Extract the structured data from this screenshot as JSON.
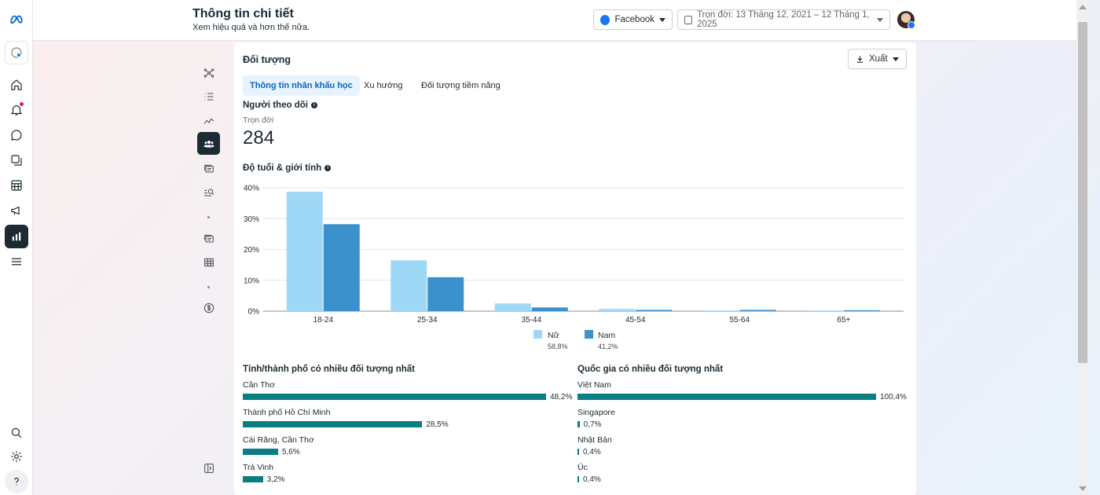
{
  "header": {
    "title": "Thông tin chi tiết",
    "subtitle": "Xem hiệu quả và hơn thế nữa.",
    "platform_label": "Facebook",
    "date_range": "Trọn đời: 13 Tháng 12, 2021 – 12 Tháng 1, 2025"
  },
  "card": {
    "title": "Đối tượng",
    "export_label": "Xuất",
    "tabs": [
      "Thông tin nhân khẩu học",
      "Xu hướng",
      "Đối tượng tiềm năng"
    ],
    "followers": {
      "title": "Người theo dõi",
      "period": "Trọn đời",
      "value": "284"
    },
    "age_gender_title": "Độ tuổi & giới tính",
    "legend": [
      {
        "label": "Nữ",
        "pct": "58,8%",
        "color": "#9fd8f7"
      },
      {
        "label": "Nam",
        "pct": "41,2%",
        "color": "#3a91cc"
      }
    ]
  },
  "chart_data": {
    "type": "bar",
    "categories": [
      "18-24",
      "25-34",
      "35-44",
      "45-54",
      "55-64",
      "65+"
    ],
    "series": [
      {
        "name": "Nữ",
        "values": [
          38.7,
          16.5,
          2.5,
          0.7,
          0.2,
          0.2
        ],
        "color": "#9fd8f7"
      },
      {
        "name": "Nam",
        "values": [
          28.2,
          11.0,
          1.2,
          0.4,
          0.4,
          0.3
        ],
        "color": "#3a91cc"
      }
    ],
    "y_ticks": [
      "0%",
      "10%",
      "20%",
      "30%",
      "40%"
    ],
    "ylim": [
      0,
      40
    ],
    "grid": true
  },
  "cities": {
    "title": "Tỉnh/thành phố có nhiều đối tượng nhất",
    "items": [
      {
        "name": "Cần Thơ",
        "value": 48.2,
        "label": "48,2%"
      },
      {
        "name": "Thành phố Hồ Chí Minh",
        "value": 28.5,
        "label": "28,5%"
      },
      {
        "name": "Cái Răng, Cần Thơ",
        "value": 5.6,
        "label": "5,6%"
      },
      {
        "name": "Trà Vinh",
        "value": 3.2,
        "label": "3,2%"
      }
    ]
  },
  "countries": {
    "title": "Quốc gia có nhiều đối tượng nhất",
    "items": [
      {
        "name": "Việt Nam",
        "value": 100.4,
        "label": "100,4%"
      },
      {
        "name": "Singapore",
        "value": 0.7,
        "label": "0,7%"
      },
      {
        "name": "Nhật Bản",
        "value": 0.4,
        "label": "0,4%"
      },
      {
        "name": "Úc",
        "value": 0.4,
        "label": "0,4%"
      }
    ]
  }
}
